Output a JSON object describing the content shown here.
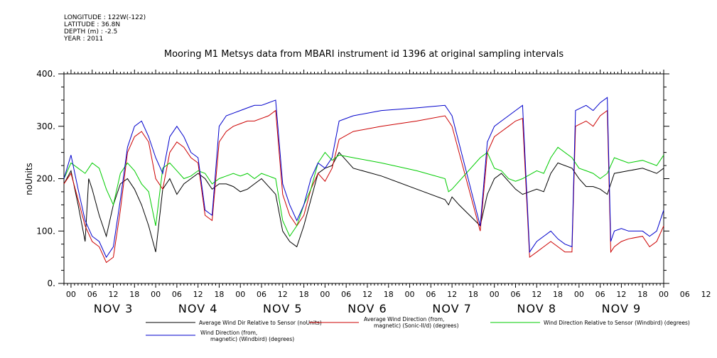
{
  "metadata": {
    "longitude": "LONGITUDE : 122W(-122)",
    "latitude": "LATITUDE : 36.8N",
    "depth": "DEPTH (m) : -2.5",
    "year": "YEAR : 2011"
  },
  "chart_data": {
    "type": "line",
    "title": "Mooring M1 Metsys data from MBARI instrument id 1396 at original sampling intervals",
    "ylabel": "noUnits",
    "xlabel": "",
    "ylim": [
      0,
      400
    ],
    "yticks": [
      "0.",
      "100.",
      "200.",
      "300.",
      "400."
    ],
    "x_unit": "hours since NOV 2 22:00",
    "xlim": [
      0,
      170
    ],
    "hour_tick_labels": [
      "00",
      "06",
      "12",
      "18",
      "00",
      "06",
      "12",
      "18",
      "00",
      "06",
      "12",
      "18",
      "00",
      "06",
      "12",
      "18",
      "00",
      "06",
      "12",
      "18",
      "00",
      "06",
      "12",
      "18",
      "00",
      "06",
      "12",
      "18",
      "00",
      "06",
      "12",
      "18"
    ],
    "day_labels": [
      {
        "label": "NOV  3",
        "x": 14
      },
      {
        "label": "NOV  4",
        "x": 38
      },
      {
        "label": "NOV  5",
        "x": 62
      },
      {
        "label": "NOV  6",
        "x": 86
      },
      {
        "label": "NOV  7",
        "x": 110
      },
      {
        "label": "NOV  8",
        "x": 134
      },
      {
        "label": "NOV  9",
        "x": 158
      }
    ],
    "grid": false,
    "legend_position": "bottom",
    "series": [
      {
        "name": "Average Wind Dir Relative to Sensor (noUnits)",
        "color": "#000000",
        "points": [
          [
            0,
            190
          ],
          [
            2,
            215
          ],
          [
            4,
            150
          ],
          [
            6,
            80
          ],
          [
            7,
            200
          ],
          [
            8,
            180
          ],
          [
            10,
            130
          ],
          [
            12,
            90
          ],
          [
            14,
            150
          ],
          [
            16,
            190
          ],
          [
            18,
            200
          ],
          [
            20,
            180
          ],
          [
            22,
            150
          ],
          [
            24,
            110
          ],
          [
            26,
            60
          ],
          [
            28,
            180
          ],
          [
            30,
            200
          ],
          [
            32,
            170
          ],
          [
            34,
            190
          ],
          [
            36,
            200
          ],
          [
            38,
            210
          ],
          [
            40,
            200
          ],
          [
            42,
            180
          ],
          [
            44,
            190
          ],
          [
            46,
            190
          ],
          [
            48,
            185
          ],
          [
            50,
            175
          ],
          [
            52,
            180
          ],
          [
            54,
            190
          ],
          [
            56,
            200
          ],
          [
            58,
            185
          ],
          [
            60,
            170
          ],
          [
            62,
            100
          ],
          [
            64,
            80
          ],
          [
            66,
            70
          ],
          [
            68,
            110
          ],
          [
            70,
            160
          ],
          [
            72,
            210
          ],
          [
            74,
            220
          ],
          [
            76,
            225
          ],
          [
            78,
            250
          ],
          [
            82,
            220
          ],
          [
            90,
            205
          ],
          [
            100,
            180
          ],
          [
            108,
            160
          ],
          [
            109,
            150
          ],
          [
            110,
            165
          ],
          [
            112,
            150
          ],
          [
            118,
            110
          ],
          [
            120,
            170
          ],
          [
            122,
            200
          ],
          [
            124,
            210
          ],
          [
            126,
            195
          ],
          [
            128,
            180
          ],
          [
            130,
            170
          ],
          [
            134,
            180
          ],
          [
            136,
            175
          ],
          [
            138,
            210
          ],
          [
            140,
            230
          ],
          [
            144,
            220
          ],
          [
            146,
            200
          ],
          [
            148,
            185
          ],
          [
            150,
            185
          ],
          [
            152,
            180
          ],
          [
            154,
            170
          ],
          [
            156,
            210
          ],
          [
            160,
            215
          ],
          [
            164,
            220
          ],
          [
            168,
            210
          ],
          [
            170,
            220
          ]
        ]
      },
      {
        "name": "Average Wind Direction (from, magnetic) (Sonic-II/d) (degrees)",
        "color": "#cc0000",
        "points": [
          [
            0,
            190
          ],
          [
            2,
            210
          ],
          [
            4,
            160
          ],
          [
            6,
            110
          ],
          [
            8,
            80
          ],
          [
            10,
            70
          ],
          [
            12,
            40
          ],
          [
            14,
            50
          ],
          [
            16,
            140
          ],
          [
            18,
            250
          ],
          [
            20,
            280
          ],
          [
            22,
            290
          ],
          [
            24,
            270
          ],
          [
            26,
            200
          ],
          [
            28,
            180
          ],
          [
            30,
            250
          ],
          [
            32,
            270
          ],
          [
            34,
            260
          ],
          [
            36,
            240
          ],
          [
            38,
            230
          ],
          [
            40,
            130
          ],
          [
            42,
            120
          ],
          [
            44,
            270
          ],
          [
            46,
            290
          ],
          [
            48,
            300
          ],
          [
            50,
            305
          ],
          [
            52,
            310
          ],
          [
            54,
            310
          ],
          [
            56,
            315
          ],
          [
            58,
            320
          ],
          [
            60,
            330
          ],
          [
            62,
            170
          ],
          [
            64,
            130
          ],
          [
            66,
            110
          ],
          [
            68,
            130
          ],
          [
            70,
            180
          ],
          [
            72,
            210
          ],
          [
            74,
            195
          ],
          [
            76,
            220
          ],
          [
            78,
            275
          ],
          [
            82,
            290
          ],
          [
            90,
            300
          ],
          [
            100,
            310
          ],
          [
            108,
            320
          ],
          [
            109,
            310
          ],
          [
            110,
            300
          ],
          [
            118,
            100
          ],
          [
            120,
            250
          ],
          [
            122,
            280
          ],
          [
            124,
            290
          ],
          [
            126,
            300
          ],
          [
            128,
            310
          ],
          [
            130,
            315
          ],
          [
            132,
            50
          ],
          [
            134,
            60
          ],
          [
            136,
            70
          ],
          [
            138,
            80
          ],
          [
            140,
            70
          ],
          [
            142,
            60
          ],
          [
            144,
            60
          ],
          [
            145,
            300
          ],
          [
            148,
            310
          ],
          [
            150,
            300
          ],
          [
            152,
            320
          ],
          [
            154,
            330
          ],
          [
            155,
            60
          ],
          [
            156,
            70
          ],
          [
            158,
            80
          ],
          [
            160,
            85
          ],
          [
            164,
            90
          ],
          [
            166,
            70
          ],
          [
            168,
            80
          ],
          [
            170,
            110
          ]
        ]
      },
      {
        "name": "Wind Direction Relative to Sensor (Windbird) (degrees)",
        "color": "#00cc00",
        "points": [
          [
            0,
            200
          ],
          [
            2,
            230
          ],
          [
            4,
            220
          ],
          [
            6,
            210
          ],
          [
            8,
            230
          ],
          [
            10,
            220
          ],
          [
            12,
            180
          ],
          [
            14,
            150
          ],
          [
            16,
            210
          ],
          [
            18,
            230
          ],
          [
            20,
            215
          ],
          [
            22,
            190
          ],
          [
            24,
            175
          ],
          [
            26,
            110
          ],
          [
            28,
            220
          ],
          [
            30,
            230
          ],
          [
            32,
            215
          ],
          [
            34,
            200
          ],
          [
            36,
            205
          ],
          [
            38,
            215
          ],
          [
            40,
            210
          ],
          [
            42,
            190
          ],
          [
            44,
            200
          ],
          [
            46,
            205
          ],
          [
            48,
            210
          ],
          [
            50,
            205
          ],
          [
            52,
            210
          ],
          [
            54,
            200
          ],
          [
            56,
            210
          ],
          [
            58,
            205
          ],
          [
            60,
            200
          ],
          [
            62,
            120
          ],
          [
            64,
            90
          ],
          [
            66,
            110
          ],
          [
            68,
            150
          ],
          [
            70,
            180
          ],
          [
            72,
            230
          ],
          [
            74,
            250
          ],
          [
            76,
            235
          ],
          [
            78,
            245
          ],
          [
            82,
            240
          ],
          [
            90,
            230
          ],
          [
            100,
            215
          ],
          [
            108,
            200
          ],
          [
            109,
            175
          ],
          [
            110,
            180
          ],
          [
            118,
            240
          ],
          [
            120,
            250
          ],
          [
            122,
            220
          ],
          [
            124,
            215
          ],
          [
            126,
            200
          ],
          [
            128,
            195
          ],
          [
            130,
            200
          ],
          [
            134,
            215
          ],
          [
            136,
            210
          ],
          [
            138,
            240
          ],
          [
            140,
            260
          ],
          [
            144,
            240
          ],
          [
            146,
            220
          ],
          [
            148,
            215
          ],
          [
            150,
            210
          ],
          [
            152,
            200
          ],
          [
            154,
            210
          ],
          [
            156,
            240
          ],
          [
            160,
            230
          ],
          [
            164,
            235
          ],
          [
            168,
            225
          ],
          [
            170,
            245
          ]
        ]
      },
      {
        "name": "Wind Direction (from, magnetic) (Windbird) (degrees)",
        "color": "#0000cc",
        "points": [
          [
            0,
            200
          ],
          [
            2,
            245
          ],
          [
            4,
            180
          ],
          [
            6,
            120
          ],
          [
            8,
            90
          ],
          [
            10,
            80
          ],
          [
            12,
            50
          ],
          [
            14,
            70
          ],
          [
            16,
            160
          ],
          [
            18,
            260
          ],
          [
            20,
            300
          ],
          [
            22,
            310
          ],
          [
            24,
            280
          ],
          [
            26,
            240
          ],
          [
            28,
            210
          ],
          [
            30,
            280
          ],
          [
            32,
            300
          ],
          [
            34,
            280
          ],
          [
            36,
            250
          ],
          [
            38,
            240
          ],
          [
            40,
            140
          ],
          [
            42,
            130
          ],
          [
            44,
            300
          ],
          [
            46,
            320
          ],
          [
            48,
            325
          ],
          [
            50,
            330
          ],
          [
            52,
            335
          ],
          [
            54,
            340
          ],
          [
            56,
            340
          ],
          [
            58,
            345
          ],
          [
            60,
            350
          ],
          [
            62,
            190
          ],
          [
            64,
            150
          ],
          [
            66,
            120
          ],
          [
            68,
            150
          ],
          [
            70,
            200
          ],
          [
            72,
            230
          ],
          [
            74,
            220
          ],
          [
            76,
            240
          ],
          [
            78,
            310
          ],
          [
            82,
            320
          ],
          [
            90,
            330
          ],
          [
            100,
            335
          ],
          [
            108,
            340
          ],
          [
            109,
            330
          ],
          [
            110,
            320
          ],
          [
            118,
            110
          ],
          [
            120,
            270
          ],
          [
            122,
            300
          ],
          [
            124,
            310
          ],
          [
            126,
            320
          ],
          [
            128,
            330
          ],
          [
            130,
            340
          ],
          [
            132,
            60
          ],
          [
            134,
            80
          ],
          [
            136,
            90
          ],
          [
            138,
            100
          ],
          [
            140,
            85
          ],
          [
            142,
            75
          ],
          [
            144,
            70
          ],
          [
            145,
            330
          ],
          [
            148,
            340
          ],
          [
            150,
            330
          ],
          [
            152,
            345
          ],
          [
            154,
            355
          ],
          [
            155,
            80
          ],
          [
            156,
            100
          ],
          [
            158,
            105
          ],
          [
            160,
            100
          ],
          [
            164,
            100
          ],
          [
            166,
            90
          ],
          [
            168,
            100
          ],
          [
            170,
            140
          ]
        ]
      }
    ]
  },
  "legend": {
    "items": [
      {
        "label": "Average Wind Dir Relative to Sensor (noUnits)",
        "color": "#000000"
      },
      {
        "label_line1": "Average Wind Direction (from,",
        "label_line2": "magnetic) (Sonic-II/d) (degrees)",
        "color": "#cc0000"
      },
      {
        "label": "Wind Direction Relative to Sensor (Windbird) (degrees)",
        "color": "#00cc00"
      },
      {
        "label_line1": "Wind Direction (from,",
        "label_line2": "magnetic) (Windbird) (degrees)",
        "color": "#0000cc"
      }
    ]
  }
}
